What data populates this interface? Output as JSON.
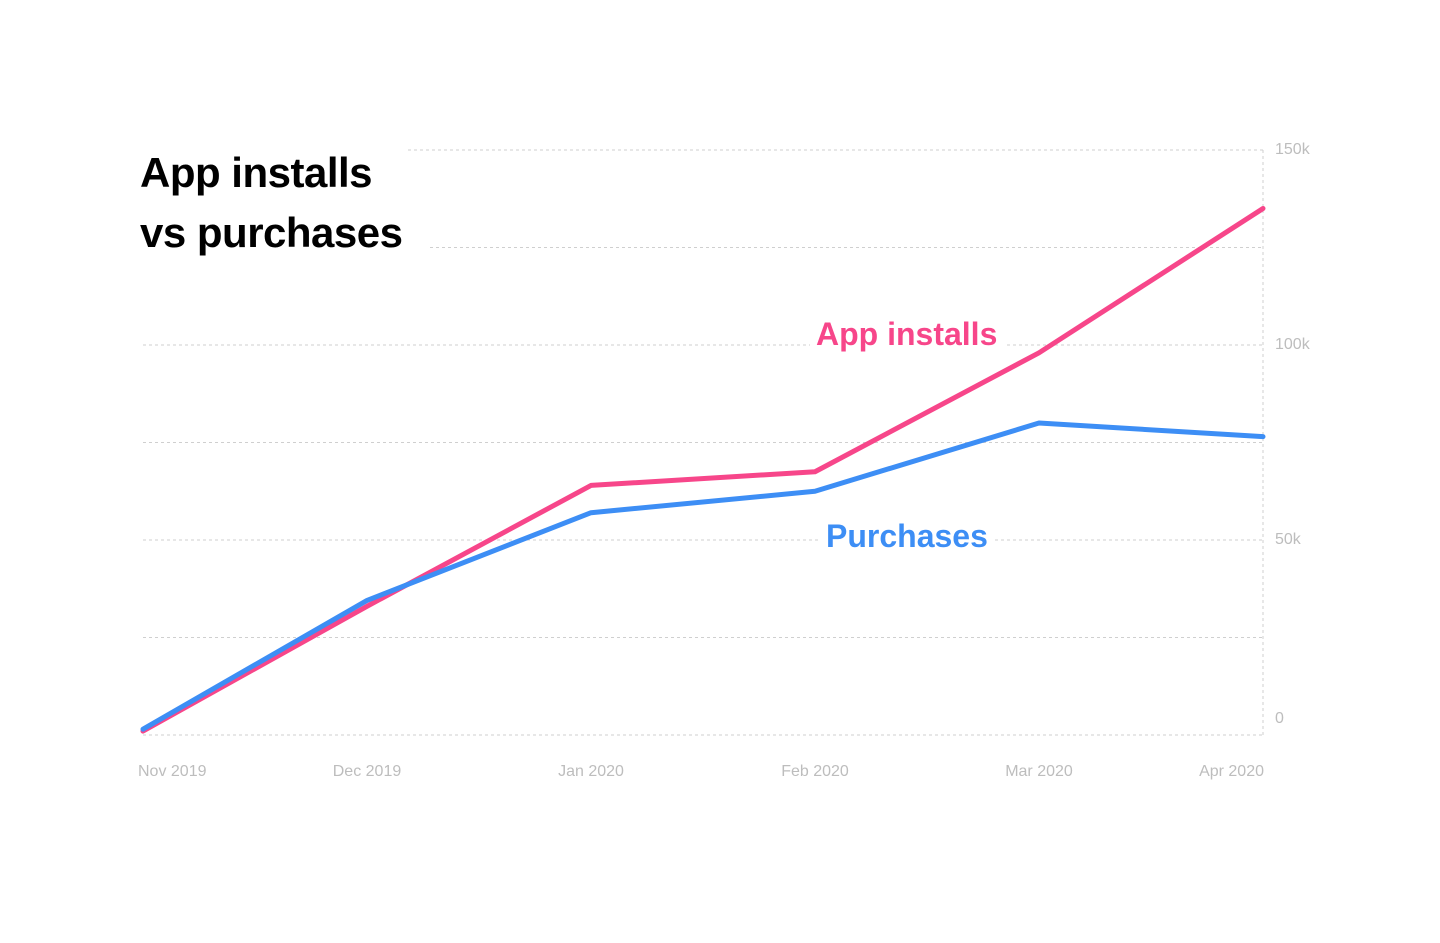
{
  "chart_data": {
    "type": "line",
    "title_lines": [
      "App installs",
      "vs purchases"
    ],
    "x": [
      "Nov 2019",
      "Dec 2019",
      "Jan 2020",
      "Feb 2020",
      "Mar 2020",
      "Apr 2020"
    ],
    "y_ticks": [
      {
        "value": 0,
        "label": "0"
      },
      {
        "value": 50000,
        "label": "50k"
      },
      {
        "value": 100000,
        "label": "100k"
      },
      {
        "value": 150000,
        "label": "150k"
      }
    ],
    "ylim": [
      0,
      150000
    ],
    "grid": true,
    "y_axis_position": "right",
    "series": [
      {
        "name": "App installs",
        "color": "#f7468a",
        "values": [
          1000,
          33000,
          64000,
          67500,
          98000,
          135000
        ]
      },
      {
        "name": "Purchases",
        "color": "#3d8ef5",
        "values": [
          1500,
          34500,
          57000,
          62500,
          80000,
          76500
        ]
      }
    ]
  }
}
